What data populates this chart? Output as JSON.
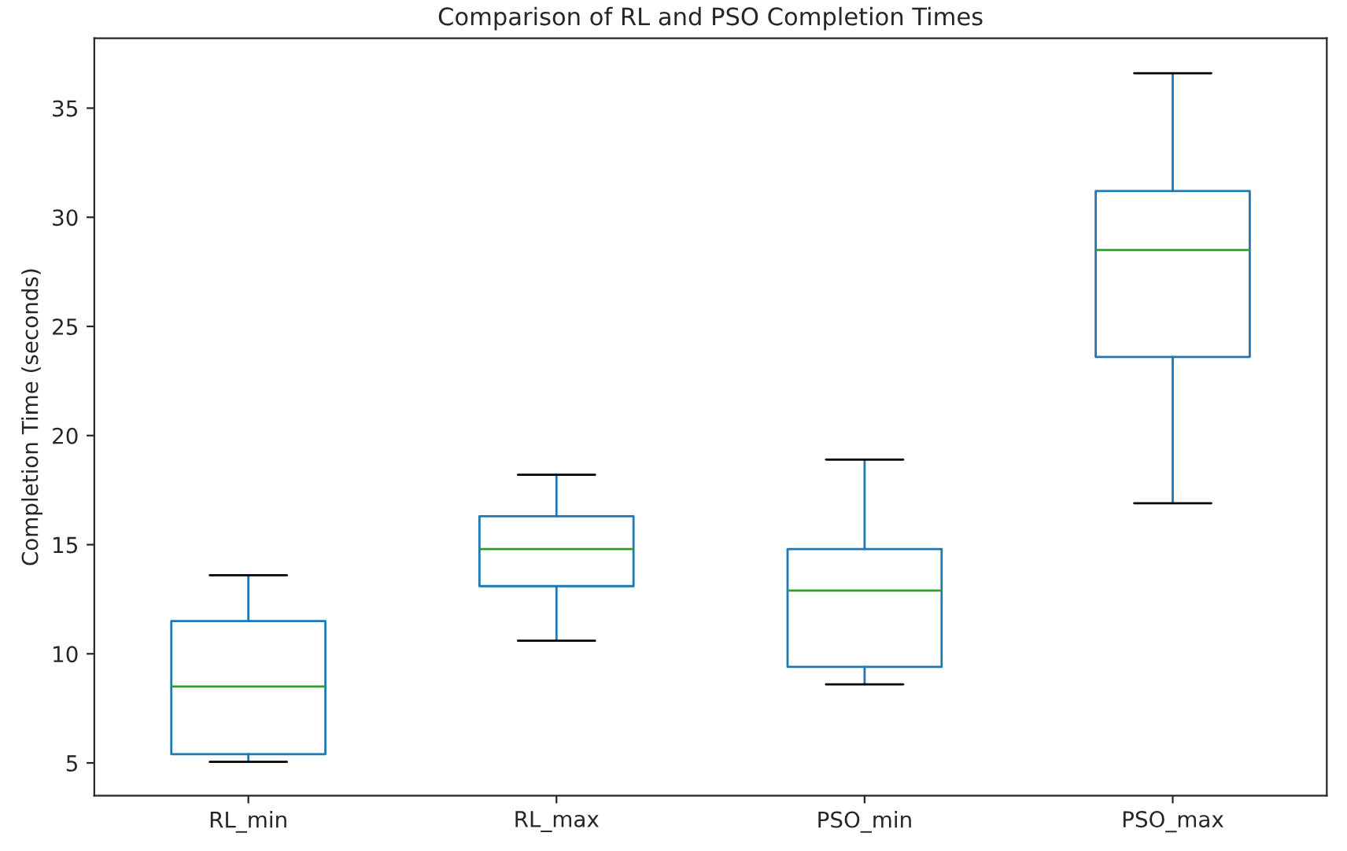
{
  "chart_data": {
    "type": "box",
    "title": "Comparison of RL and PSO Completion Times",
    "ylabel": "Completion Time (seconds)",
    "categories": [
      "RL_min",
      "RL_max",
      "PSO_min",
      "PSO_max"
    ],
    "color": "#1f77b4",
    "boxes": [
      {
        "low": 5.05,
        "q1": 5.4,
        "median": 8.5,
        "q3": 11.5,
        "high": 13.6
      },
      {
        "low": 10.6,
        "q1": 13.1,
        "median": 14.8,
        "q3": 16.3,
        "high": 18.2
      },
      {
        "low": 8.6,
        "q1": 9.4,
        "median": 12.9,
        "q3": 14.8,
        "high": 18.9
      },
      {
        "low": 16.9,
        "q1": 23.6,
        "median": 28.5,
        "q3": 31.2,
        "high": 36.6
      }
    ],
    "ylim": [
      3.5,
      38.2
    ],
    "yticks": [
      5,
      10,
      15,
      20,
      25,
      30,
      35
    ]
  }
}
